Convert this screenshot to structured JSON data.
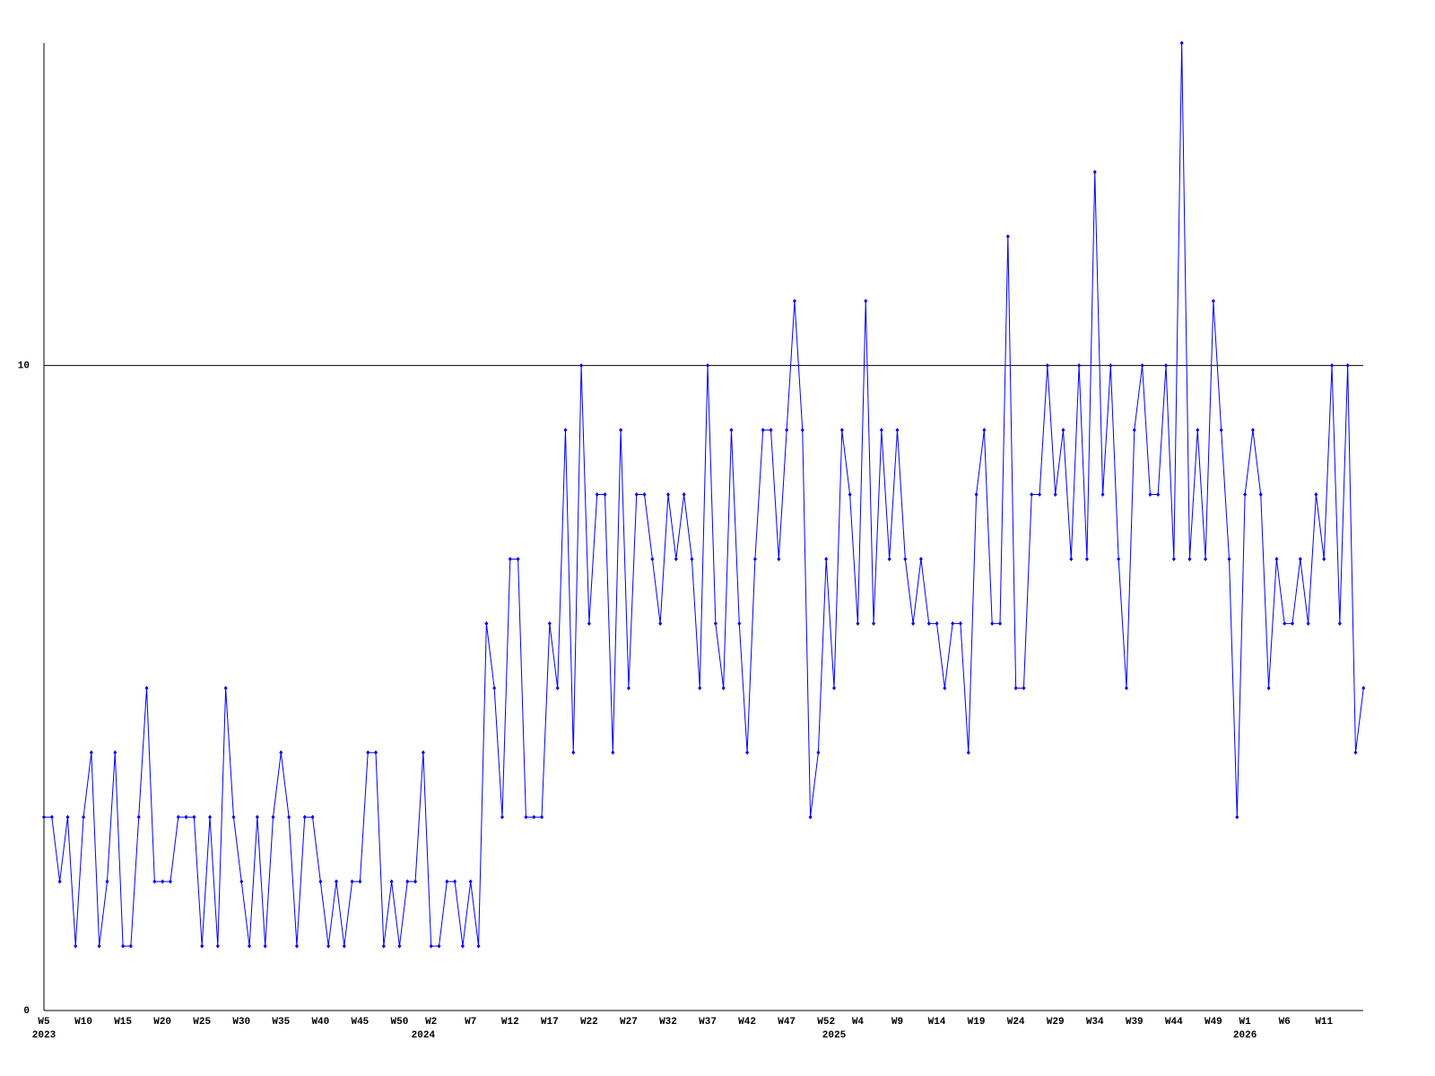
{
  "chart_data": {
    "type": "line",
    "categories": [
      "W5",
      null,
      null,
      null,
      null,
      "W10",
      null,
      null,
      null,
      null,
      "W15",
      null,
      null,
      null,
      null,
      "W20",
      null,
      null,
      null,
      null,
      "W25",
      null,
      null,
      null,
      null,
      "W30",
      null,
      null,
      null,
      null,
      "W35",
      null,
      null,
      null,
      null,
      "W40",
      null,
      null,
      null,
      null,
      "W45",
      null,
      null,
      null,
      null,
      "W50",
      null,
      null,
      null,
      "W2",
      null,
      null,
      null,
      null,
      "W7",
      null,
      null,
      null,
      null,
      "W12",
      null,
      null,
      null,
      null,
      "W17",
      null,
      null,
      null,
      null,
      "W22",
      null,
      null,
      null,
      null,
      "W27",
      null,
      null,
      null,
      null,
      "W32",
      null,
      null,
      null,
      null,
      "W37",
      null,
      null,
      null,
      null,
      "W42",
      null,
      null,
      null,
      null,
      "W47",
      null,
      null,
      null,
      null,
      "W52",
      null,
      null,
      null,
      "W4",
      null,
      null,
      null,
      null,
      "W9",
      null,
      null,
      null,
      null,
      "W14",
      null,
      null,
      null,
      null,
      "W19",
      null,
      null,
      null,
      null,
      "W24",
      null,
      null,
      null,
      null,
      "W29",
      null,
      null,
      null,
      null,
      "W34",
      null,
      null,
      null,
      null,
      "W39",
      null,
      null,
      null,
      null,
      "W44",
      null,
      null,
      null,
      null,
      "W49",
      null,
      null,
      null,
      "W1",
      null,
      null,
      null,
      null,
      "W6",
      null,
      null,
      null,
      null,
      "W11",
      null,
      null,
      null,
      null,
      null
    ],
    "x_years": [
      "2023",
      null,
      null,
      null,
      null,
      null,
      null,
      null,
      null,
      null,
      null,
      null,
      null,
      null,
      null,
      null,
      null,
      null,
      null,
      null,
      null,
      null,
      null,
      null,
      null,
      null,
      null,
      null,
      null,
      null,
      null,
      null,
      null,
      null,
      null,
      null,
      null,
      null,
      null,
      null,
      null,
      null,
      null,
      null,
      null,
      null,
      null,
      null,
      "2024",
      null,
      null,
      null,
      null,
      null,
      null,
      null,
      null,
      null,
      null,
      null,
      null,
      null,
      null,
      null,
      null,
      null,
      null,
      null,
      null,
      null,
      null,
      null,
      null,
      null,
      null,
      null,
      null,
      null,
      null,
      null,
      null,
      null,
      null,
      null,
      null,
      null,
      null,
      null,
      null,
      null,
      null,
      null,
      null,
      null,
      null,
      null,
      null,
      null,
      null,
      null,
      "2025",
      null,
      null,
      null,
      null,
      null,
      null,
      null,
      null,
      null,
      null,
      null,
      null,
      null,
      null,
      null,
      null,
      null,
      null,
      null,
      null,
      null,
      null,
      null,
      null,
      null,
      null,
      null,
      null,
      null,
      null,
      null,
      null,
      null,
      null,
      null,
      null,
      null,
      null,
      null,
      null,
      null,
      null,
      null,
      null,
      null,
      null,
      null,
      null,
      null,
      null,
      null,
      "2026",
      null,
      null,
      null,
      null,
      null,
      null,
      null,
      null,
      null,
      null,
      null,
      null,
      null,
      null,
      null
    ],
    "values": [
      3,
      3,
      2,
      3,
      1,
      3,
      4,
      1,
      2,
      4,
      1,
      1,
      3,
      5,
      2,
      2,
      2,
      3,
      3,
      3,
      1,
      3,
      1,
      5,
      3,
      2,
      1,
      3,
      1,
      3,
      4,
      3,
      1,
      3,
      3,
      2,
      1,
      2,
      1,
      2,
      2,
      4,
      4,
      1,
      2,
      1,
      2,
      2,
      4,
      1,
      1,
      2,
      2,
      1,
      2,
      1,
      6,
      5,
      3,
      7,
      7,
      3,
      3,
      3,
      6,
      5,
      9,
      4,
      10,
      6,
      8,
      8,
      4,
      9,
      5,
      8,
      8,
      7,
      6,
      8,
      7,
      8,
      7,
      5,
      10,
      6,
      5,
      9,
      6,
      4,
      7,
      9,
      9,
      7,
      9,
      11,
      9,
      3,
      4,
      7,
      5,
      9,
      8,
      6,
      11,
      6,
      9,
      7,
      9,
      7,
      6,
      7,
      6,
      6,
      5,
      6,
      6,
      4,
      8,
      9,
      6,
      6,
      12,
      5,
      5,
      8,
      8,
      10,
      8,
      9,
      7,
      10,
      7,
      13,
      8,
      10,
      7,
      5,
      9,
      10,
      8,
      8,
      10,
      7,
      15,
      7,
      9,
      7,
      11,
      9,
      7,
      3,
      8,
      9,
      8,
      5,
      7,
      6,
      6,
      7,
      6,
      8,
      7,
      10,
      6,
      10,
      4,
      5
    ],
    "color": "#0000ff",
    "ylim": [
      0,
      15
    ],
    "yticks": [
      0,
      10
    ],
    "grid": true
  }
}
